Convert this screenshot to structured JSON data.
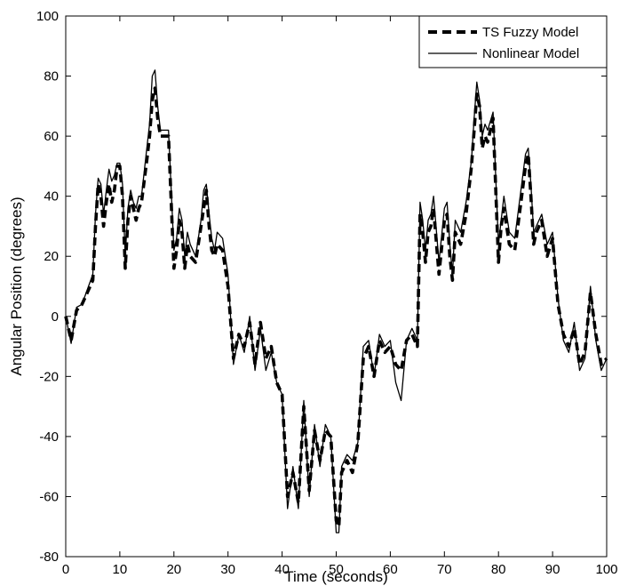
{
  "chart_data": {
    "type": "line",
    "xlabel": "Time (seconds)",
    "ylabel": "Angular Position (degrees)",
    "xlim": [
      0,
      100
    ],
    "ylim": [
      -80,
      100
    ],
    "xticks": [
      0,
      10,
      20,
      30,
      40,
      50,
      60,
      70,
      80,
      90,
      100
    ],
    "yticks": [
      -80,
      -60,
      -40,
      -20,
      0,
      20,
      40,
      60,
      80,
      100
    ],
    "grid": false,
    "legend_position": "top-right",
    "series": [
      {
        "name": "TS Fuzzy Model",
        "style": "dashed",
        "color": "#000000",
        "x": [
          0,
          1,
          2,
          3,
          4,
          5,
          5.5,
          6,
          6.5,
          7,
          7.5,
          8,
          8.5,
          9,
          9.5,
          10,
          10.5,
          11,
          11.5,
          12,
          12.5,
          13,
          13.5,
          14,
          15,
          15.5,
          16,
          16.5,
          17,
          17.5,
          18,
          19,
          20,
          20.5,
          21,
          21.5,
          22,
          22.5,
          23,
          24,
          25,
          25.5,
          26,
          26.5,
          27,
          27.5,
          28,
          29,
          30,
          31,
          32,
          33,
          34,
          35,
          36,
          37,
          38,
          39,
          40,
          41,
          42,
          43,
          44,
          45,
          46,
          47,
          48,
          49,
          50,
          50.5,
          51,
          52,
          53,
          54,
          55,
          56,
          57,
          58,
          59,
          60,
          61,
          62,
          63,
          64,
          65,
          65.5,
          66,
          66.5,
          67,
          67.5,
          68,
          69,
          70,
          70.5,
          71,
          71.5,
          72,
          73,
          74,
          75,
          75.5,
          76,
          76.5,
          77,
          77.5,
          78,
          79,
          80,
          80.5,
          81,
          82,
          83,
          84,
          85,
          85.5,
          86,
          86.5,
          87,
          88,
          89,
          90,
          91,
          92,
          93,
          94,
          95,
          96,
          97,
          98,
          99,
          100
        ],
        "y": [
          0,
          -8,
          2,
          4,
          8,
          12,
          30,
          44,
          40,
          30,
          38,
          44,
          38,
          42,
          50,
          50,
          40,
          16,
          32,
          40,
          36,
          32,
          36,
          38,
          52,
          60,
          72,
          76,
          66,
          60,
          60,
          60,
          16,
          22,
          32,
          28,
          16,
          24,
          20,
          18,
          30,
          36,
          42,
          30,
          22,
          20,
          24,
          22,
          10,
          -14,
          -6,
          -10,
          -2,
          -16,
          -2,
          -14,
          -10,
          -22,
          -26,
          -60,
          -52,
          -62,
          -30,
          -58,
          -38,
          -48,
          -38,
          -40,
          -68,
          -70,
          -52,
          -48,
          -52,
          -42,
          -14,
          -10,
          -20,
          -8,
          -12,
          -10,
          -16,
          -18,
          -8,
          -6,
          -10,
          34,
          28,
          18,
          28,
          30,
          36,
          14,
          32,
          34,
          20,
          12,
          28,
          24,
          34,
          50,
          62,
          74,
          70,
          56,
          60,
          58,
          66,
          18,
          30,
          36,
          24,
          22,
          36,
          50,
          54,
          40,
          24,
          28,
          32,
          20,
          26,
          4,
          -6,
          -10,
          -4,
          -16,
          -12,
          8,
          -6,
          -16,
          -14
        ]
      },
      {
        "name": "Nonlinear Model",
        "style": "solid",
        "color": "#000000",
        "x": [
          0,
          1,
          2,
          3,
          4,
          5,
          5.5,
          6,
          6.5,
          7,
          7.5,
          8,
          8.5,
          9,
          9.5,
          10,
          10.5,
          11,
          11.5,
          12,
          12.5,
          13,
          13.5,
          14,
          15,
          15.5,
          16,
          16.5,
          17,
          17.5,
          18,
          19,
          20,
          20.5,
          21,
          21.5,
          22,
          22.5,
          23,
          24,
          25,
          25.5,
          26,
          26.5,
          27,
          27.5,
          28,
          29,
          30,
          31,
          32,
          33,
          34,
          35,
          36,
          37,
          38,
          39,
          40,
          41,
          42,
          43,
          44,
          45,
          46,
          47,
          48,
          49,
          50,
          50.5,
          51,
          52,
          53,
          54,
          55,
          56,
          57,
          58,
          59,
          60,
          61,
          62,
          63,
          64,
          65,
          65.5,
          66,
          66.5,
          67,
          67.5,
          68,
          69,
          70,
          70.5,
          71,
          71.5,
          72,
          73,
          74,
          75,
          75.5,
          76,
          76.5,
          77,
          77.5,
          78,
          79,
          80,
          80.5,
          81,
          82,
          83,
          84,
          85,
          85.5,
          86,
          86.5,
          87,
          88,
          89,
          90,
          91,
          92,
          93,
          94,
          95,
          96,
          97,
          98,
          99,
          100
        ],
        "y": [
          0,
          -9,
          3,
          4,
          9,
          14,
          34,
          46,
          44,
          34,
          42,
          49,
          45,
          47,
          51,
          51,
          44,
          20,
          36,
          42,
          38,
          36,
          40,
          40,
          56,
          64,
          80,
          82,
          70,
          62,
          62,
          62,
          22,
          26,
          36,
          32,
          20,
          28,
          24,
          20,
          32,
          42,
          44,
          34,
          26,
          22,
          28,
          26,
          14,
          -16,
          -6,
          -12,
          0,
          -18,
          -4,
          -18,
          -12,
          -22,
          -26,
          -64,
          -50,
          -64,
          -28,
          -60,
          -36,
          -50,
          -36,
          -40,
          -72,
          -72,
          -50,
          -46,
          -48,
          -42,
          -10,
          -8,
          -20,
          -6,
          -10,
          -8,
          -22,
          -28,
          -8,
          -4,
          -8,
          38,
          32,
          22,
          32,
          34,
          40,
          18,
          36,
          38,
          24,
          14,
          32,
          28,
          38,
          52,
          66,
          78,
          72,
          60,
          64,
          62,
          68,
          24,
          32,
          40,
          28,
          26,
          40,
          54,
          56,
          44,
          28,
          30,
          34,
          24,
          28,
          6,
          -8,
          -12,
          -2,
          -18,
          -14,
          10,
          -8,
          -18,
          -14
        ]
      }
    ]
  }
}
